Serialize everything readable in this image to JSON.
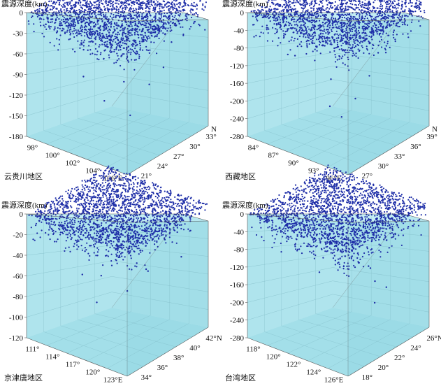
{
  "chart_data": [
    {
      "type": "scatter",
      "region_label": "云贵川地区",
      "z_title": "震源深度(km)",
      "z_ticks": [
        "0",
        "-30",
        "-60",
        "-90",
        "-120",
        "-150",
        "-180"
      ],
      "zlim": [
        -180,
        0
      ],
      "x_ticks": [
        "98°",
        "100°",
        "102°",
        "104°",
        "106°E"
      ],
      "xlim": [
        97,
        107
      ],
      "y_ticks": [
        "21°",
        "24°",
        "27°",
        "30°",
        "33°"
      ],
      "ylim": [
        20,
        34
      ],
      "y_axis_name": "N",
      "point_count": 5200,
      "deep_points": [
        [
          99.5,
          29.0,
          -52
        ],
        [
          101.0,
          26.5,
          -66
        ],
        [
          102.5,
          30.0,
          -65
        ],
        [
          103.8,
          25.0,
          -88
        ],
        [
          99.5,
          25.5,
          -68
        ],
        [
          103.0,
          23.0,
          -110
        ],
        [
          105.0,
          24.0,
          -125
        ],
        [
          104.5,
          32.0,
          -62
        ],
        [
          102.0,
          32.5,
          -140
        ],
        [
          98.5,
          27.0,
          -55
        ],
        [
          106.0,
          28.0,
          -70
        ],
        [
          100.5,
          24.5,
          -58
        ],
        [
          101.5,
          22.0,
          -78
        ]
      ]
    },
    {
      "type": "scatter",
      "region_label": "西藏地区",
      "z_title": "震源深度(km)",
      "z_ticks": [
        "0",
        "-40",
        "-80",
        "-120",
        "-160",
        "-200",
        "-240",
        "-280"
      ],
      "zlim": [
        -280,
        0
      ],
      "x_ticks": [
        "84°",
        "87°",
        "90°",
        "93°",
        "96°E"
      ],
      "xlim": [
        82,
        97
      ],
      "y_ticks": [
        "27°",
        "30°",
        "33°",
        "36°",
        "39°"
      ],
      "ylim": [
        26,
        40
      ],
      "y_axis_name": "N",
      "point_count": 2600,
      "deep_points": [
        [
          86.5,
          29.0,
          -95
        ],
        [
          91.0,
          30.0,
          -130
        ],
        [
          93.0,
          27.5,
          -160
        ],
        [
          95.0,
          32.0,
          -115
        ],
        [
          88.0,
          34.0,
          -90
        ],
        [
          90.0,
          33.0,
          -245
        ],
        [
          85.0,
          29.5,
          -105
        ],
        [
          94.0,
          36.0,
          -100
        ],
        [
          95.5,
          29.0,
          -140
        ],
        [
          92.0,
          37.0,
          -120
        ]
      ]
    },
    {
      "type": "scatter",
      "region_label": "京津唐地区",
      "z_title": "震源深度(km)",
      "z_ticks": [
        "0",
        "-20",
        "-40",
        "-60",
        "-80",
        "-100",
        "-120"
      ],
      "zlim": [
        -130,
        0
      ],
      "x_ticks": [
        "111°",
        "114°",
        "117°",
        "120°",
        "123°E"
      ],
      "xlim": [
        110,
        124
      ],
      "y_ticks": [
        "34°",
        "36°",
        "38°",
        "40°",
        "42°N"
      ],
      "ylim": [
        33,
        43
      ],
      "y_axis_name": "",
      "point_count": 7000,
      "deep_points": [
        [
          118.0,
          39.5,
          -62
        ],
        [
          119.0,
          40.0,
          -70
        ],
        [
          117.0,
          36.0,
          -60
        ],
        [
          121.0,
          38.0,
          -52
        ],
        [
          115.5,
          35.0,
          -58
        ],
        [
          119.5,
          37.0,
          -74
        ],
        [
          113.0,
          39.0,
          -115
        ],
        [
          122.5,
          41.0,
          -50
        ]
      ]
    },
    {
      "type": "scatter",
      "region_label": "台湾地区",
      "z_title": "震源深度(km)",
      "z_ticks": [
        "0",
        "-40",
        "-80",
        "-120",
        "-160",
        "-200",
        "-240",
        "-280"
      ],
      "zlim": [
        -280,
        0
      ],
      "x_ticks": [
        "118°",
        "120°",
        "122°",
        "124°",
        "126°E"
      ],
      "xlim": [
        118,
        126
      ],
      "y_ticks": [
        "18°",
        "20°",
        "22°",
        "24°",
        "26°N"
      ],
      "ylim": [
        18,
        26
      ],
      "y_axis_name": "",
      "point_count": 4200,
      "deep_points": [
        [
          121.8,
          24.5,
          -120
        ],
        [
          122.0,
          24.0,
          -150
        ],
        [
          122.3,
          24.8,
          -170
        ],
        [
          121.5,
          22.5,
          -90
        ],
        [
          122.5,
          25.0,
          -200
        ],
        [
          123.0,
          25.5,
          -215
        ],
        [
          121.6,
          23.5,
          -130
        ],
        [
          122.8,
          24.6,
          -240
        ],
        [
          120.5,
          22.0,
          -160
        ],
        [
          123.5,
          21.0,
          -100
        ],
        [
          121.0,
          20.5,
          -75
        ],
        [
          124.0,
          22.5,
          -115
        ]
      ]
    }
  ]
}
